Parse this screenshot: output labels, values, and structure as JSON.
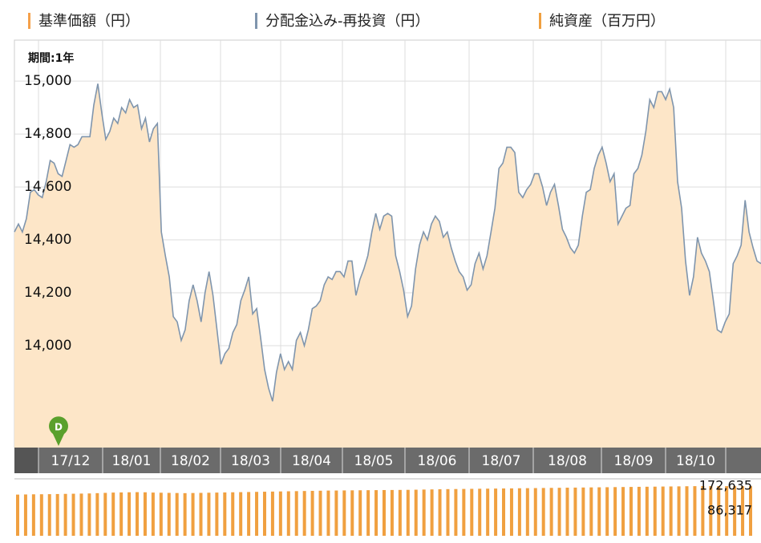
{
  "chart_data": [
    {
      "type": "area",
      "period_label": "期間:1年",
      "marker_label": "D",
      "x_axis_labels": [
        "17/12",
        "18/01",
        "18/02",
        "18/03",
        "18/04",
        "18/05",
        "18/06",
        "18/07",
        "18/08",
        "18/09",
        "18/10"
      ],
      "ylim": [
        13615,
        15155
      ],
      "yticks": [
        {
          "value": 15000,
          "label": "15,000"
        },
        {
          "value": 14800,
          "label": "14,800"
        },
        {
          "value": 14600,
          "label": "14,600"
        },
        {
          "value": 14400,
          "label": "14,400"
        },
        {
          "value": 14200,
          "label": "14,200"
        },
        {
          "value": 14000,
          "label": "14,000"
        }
      ],
      "grid": true,
      "series": [
        {
          "name": "基準価額（円）",
          "color": "#f5a04a",
          "fill": "#fde6c8",
          "values": [
            14430,
            14460,
            14430,
            14480,
            14580,
            14590,
            14570,
            14560,
            14620,
            14700,
            14690,
            14650,
            14640,
            14700,
            14760,
            14750,
            14760,
            14790,
            14790,
            14790,
            14910,
            14990,
            14880,
            14780,
            14810,
            14860,
            14840,
            14900,
            14880,
            14930,
            14900,
            14910,
            14820,
            14860,
            14770,
            14820,
            14840,
            14430,
            14340,
            14260,
            14110,
            14090,
            14020,
            14060,
            14170,
            14230,
            14170,
            14090,
            14200,
            14280,
            14190,
            14060,
            13930,
            13970,
            13990,
            14050,
            14080,
            14170,
            14210,
            14260,
            14120,
            14140,
            14030,
            13910,
            13840,
            13790,
            13900,
            13970,
            13910,
            13940,
            13910,
            14020,
            14050,
            14000,
            14060,
            14140,
            14150,
            14170,
            14230,
            14260,
            14250,
            14280,
            14280,
            14260,
            14320,
            14320,
            14190,
            14250,
            14290,
            14340,
            14430,
            14500,
            14440,
            14490,
            14500,
            14490,
            14340,
            14280,
            14210,
            14110,
            14150,
            14290,
            14380,
            14430,
            14400,
            14460,
            14490,
            14470,
            14410,
            14430,
            14370,
            14320,
            14280,
            14260,
            14210,
            14230,
            14310,
            14350,
            14290,
            14340,
            14430,
            14520,
            14670,
            14690,
            14750,
            14750,
            14730,
            14580,
            14560,
            14590,
            14610,
            14650,
            14650,
            14600,
            14530,
            14580,
            14610,
            14530,
            14440,
            14410,
            14370,
            14350,
            14380,
            14490,
            14580,
            14590,
            14670,
            14720,
            14750,
            14690,
            14620,
            14650,
            14460,
            14490,
            14520,
            14530,
            14650,
            14670,
            14720,
            14810,
            14930,
            14900,
            14960,
            14960,
            14930,
            14970,
            14900,
            14620,
            14520,
            14320,
            14190,
            14260,
            14410,
            14350,
            14320,
            14280,
            14170,
            14060,
            14050,
            14090,
            14120,
            14310,
            14340,
            14380,
            14550,
            14430,
            14370,
            14320,
            14310
          ]
        },
        {
          "name": "分配金込み-再投資（円）",
          "color": "#7f95ad",
          "values": [
            14430,
            14460,
            14430,
            14480,
            14580,
            14590,
            14570,
            14560,
            14620,
            14700,
            14690,
            14650,
            14640,
            14700,
            14760,
            14750,
            14760,
            14790,
            14790,
            14790,
            14910,
            14990,
            14880,
            14780,
            14810,
            14860,
            14840,
            14900,
            14880,
            14930,
            14900,
            14910,
            14820,
            14860,
            14770,
            14820,
            14840,
            14430,
            14340,
            14260,
            14110,
            14090,
            14020,
            14060,
            14170,
            14230,
            14170,
            14090,
            14200,
            14280,
            14190,
            14060,
            13930,
            13970,
            13990,
            14050,
            14080,
            14170,
            14210,
            14260,
            14120,
            14140,
            14030,
            13910,
            13840,
            13790,
            13900,
            13970,
            13910,
            13940,
            13910,
            14020,
            14050,
            14000,
            14060,
            14140,
            14150,
            14170,
            14230,
            14260,
            14250,
            14280,
            14280,
            14260,
            14320,
            14320,
            14190,
            14250,
            14290,
            14340,
            14430,
            14500,
            14440,
            14490,
            14500,
            14490,
            14340,
            14280,
            14210,
            14110,
            14150,
            14290,
            14380,
            14430,
            14400,
            14460,
            14490,
            14470,
            14410,
            14430,
            14370,
            14320,
            14280,
            14260,
            14210,
            14230,
            14310,
            14350,
            14290,
            14340,
            14430,
            14520,
            14670,
            14690,
            14750,
            14750,
            14730,
            14580,
            14560,
            14590,
            14610,
            14650,
            14650,
            14600,
            14530,
            14580,
            14610,
            14530,
            14440,
            14410,
            14370,
            14350,
            14380,
            14490,
            14580,
            14590,
            14670,
            14720,
            14750,
            14690,
            14620,
            14650,
            14460,
            14490,
            14520,
            14530,
            14650,
            14670,
            14720,
            14810,
            14930,
            14900,
            14960,
            14960,
            14930,
            14970,
            14900,
            14620,
            14520,
            14320,
            14190,
            14260,
            14410,
            14350,
            14320,
            14280,
            14170,
            14060,
            14050,
            14090,
            14120,
            14310,
            14340,
            14380,
            14550,
            14430,
            14370,
            14320,
            14310
          ]
        }
      ]
    },
    {
      "type": "bar",
      "ylim": [
        0,
        197700
      ],
      "yticks": [
        {
          "value": 172635,
          "label": "172,635"
        },
        {
          "value": 86317,
          "label": "86,317"
        }
      ],
      "series": [
        {
          "name": "純資産（百万円）",
          "color": "#f0a040",
          "values": [
            143000,
            143500,
            144000,
            144200,
            144500,
            145000,
            145500,
            146000,
            146500,
            147000,
            148000,
            149000,
            150000,
            150500,
            151000,
            151500,
            151000,
            150000,
            149500,
            149000,
            148500,
            148000,
            148500,
            149000,
            149500,
            150000,
            150500,
            151000,
            151500,
            152000,
            152500,
            153000,
            153500,
            154000,
            154500,
            155000,
            155500,
            156000,
            156500,
            157000,
            157200,
            157500,
            157800,
            158000,
            158300,
            158500,
            158800,
            159000,
            159200,
            159500,
            160000,
            160500,
            161000,
            161500,
            162000,
            162300,
            162600,
            163000,
            163300,
            163600,
            164000,
            164300,
            164600,
            165000,
            165300,
            165600,
            166000,
            166300,
            166600,
            167000,
            167300,
            167600,
            168000,
            168300,
            168600,
            169000,
            169300,
            169600,
            170000,
            170300,
            170600,
            171000,
            171300,
            171600,
            172000,
            172300,
            172635,
            172500,
            172400,
            172300,
            172200,
            172100,
            172000
          ]
        }
      ]
    }
  ]
}
